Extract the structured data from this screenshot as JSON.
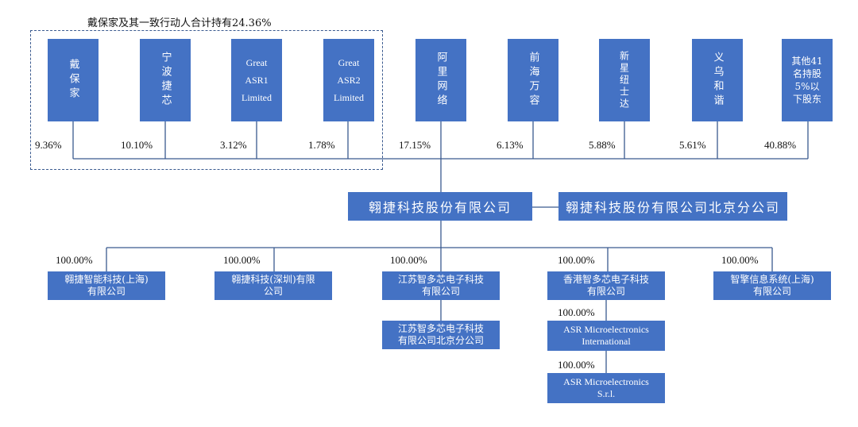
{
  "group_label": "戴保家及其一致行动人合计持有24.36%",
  "shareholders": [
    {
      "name": "戴保家",
      "pct": "9.36%"
    },
    {
      "name": "宁波捷芯",
      "pct": "10.10%"
    },
    {
      "name": "Great\nASR1\nLimited",
      "pct": "3.12%"
    },
    {
      "name": "Great\nASR2\nLimited",
      "pct": "1.78%"
    },
    {
      "name": "阿里网络",
      "pct": "17.15%"
    },
    {
      "name": "前海万容",
      "pct": "6.13%"
    },
    {
      "name": "新星纽士达",
      "pct": "5.88%"
    },
    {
      "name": "义乌和谐",
      "pct": "5.61%"
    },
    {
      "name": "其他41\n名持股\n5%以\n下股东",
      "pct": "40.88%"
    }
  ],
  "company": "翱捷科技股份有限公司",
  "branch": "翱捷科技股份有限公司北京分公司",
  "subsidiaries": [
    {
      "name": "翱捷智能科技(上海)\n有限公司",
      "pct": "100.00%"
    },
    {
      "name": "翱捷科技(深圳)有限\n公司",
      "pct": "100.00%"
    },
    {
      "name": "江苏智多芯电子科技\n有限公司",
      "pct": "100.00%"
    },
    {
      "name": "香港智多芯电子科技\n有限公司",
      "pct": "100.00%"
    },
    {
      "name": "智擎信息系统(上海)\n有限公司",
      "pct": "100.00%"
    }
  ],
  "jiangsu_branch": "江苏智多芯电子科技\n有限公司北京分公司",
  "asr_intl": {
    "name": "ASR Microelectronics\nInternational",
    "pct": "100.00%"
  },
  "asr_srl": {
    "name": "ASR Microelectronics\nS.r.l.",
    "pct": "100.00%"
  }
}
